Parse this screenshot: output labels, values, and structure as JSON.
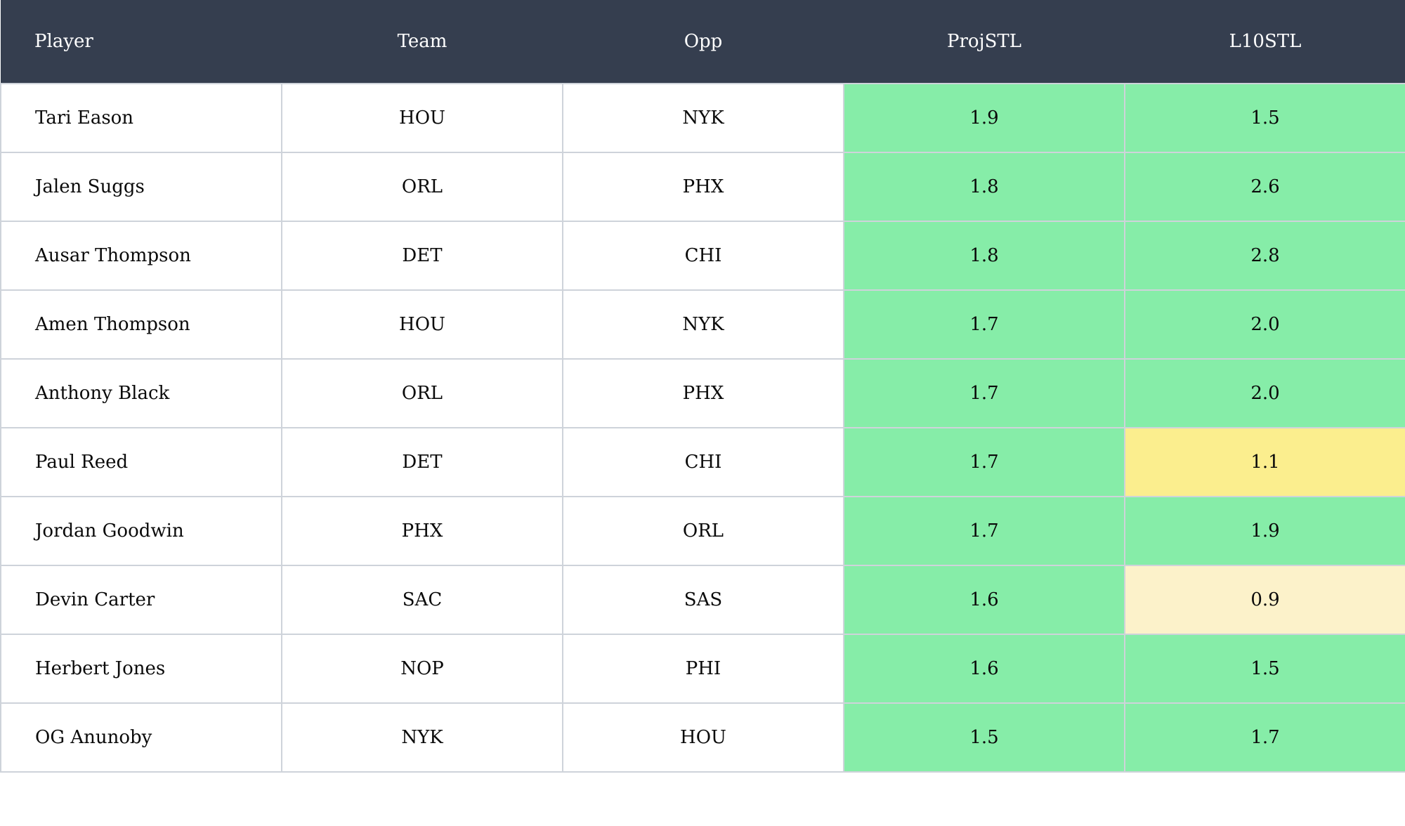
{
  "table": {
    "columns": [
      {
        "key": "player",
        "label": "Player",
        "align": "left"
      },
      {
        "key": "team",
        "label": "Team",
        "align": "center"
      },
      {
        "key": "opp",
        "label": "Opp",
        "align": "center"
      },
      {
        "key": "projstl",
        "label": "ProjSTL",
        "align": "center"
      },
      {
        "key": "l10stl",
        "label": "L10STL",
        "align": "center"
      }
    ],
    "rows": [
      {
        "player": "Tari Eason",
        "team": "HOU",
        "opp": "NYK",
        "projstl": {
          "value": "1.9",
          "tone": "green"
        },
        "l10stl": {
          "value": "1.5",
          "tone": "green"
        }
      },
      {
        "player": "Jalen Suggs",
        "team": "ORL",
        "opp": "PHX",
        "projstl": {
          "value": "1.8",
          "tone": "green"
        },
        "l10stl": {
          "value": "2.6",
          "tone": "green"
        }
      },
      {
        "player": "Ausar Thompson",
        "team": "DET",
        "opp": "CHI",
        "projstl": {
          "value": "1.8",
          "tone": "green"
        },
        "l10stl": {
          "value": "2.8",
          "tone": "green"
        }
      },
      {
        "player": "Amen Thompson",
        "team": "HOU",
        "opp": "NYK",
        "projstl": {
          "value": "1.7",
          "tone": "green"
        },
        "l10stl": {
          "value": "2.0",
          "tone": "green"
        }
      },
      {
        "player": "Anthony Black",
        "team": "ORL",
        "opp": "PHX",
        "projstl": {
          "value": "1.7",
          "tone": "green"
        },
        "l10stl": {
          "value": "2.0",
          "tone": "green"
        }
      },
      {
        "player": "Paul Reed",
        "team": "DET",
        "opp": "CHI",
        "projstl": {
          "value": "1.7",
          "tone": "green"
        },
        "l10stl": {
          "value": "1.1",
          "tone": "yellow"
        }
      },
      {
        "player": "Jordan Goodwin",
        "team": "PHX",
        "opp": "ORL",
        "projstl": {
          "value": "1.7",
          "tone": "green"
        },
        "l10stl": {
          "value": "1.9",
          "tone": "green"
        }
      },
      {
        "player": "Devin Carter",
        "team": "SAC",
        "opp": "SAS",
        "projstl": {
          "value": "1.6",
          "tone": "green"
        },
        "l10stl": {
          "value": "0.9",
          "tone": "cream"
        }
      },
      {
        "player": "Herbert Jones",
        "team": "NOP",
        "opp": "PHI",
        "projstl": {
          "value": "1.6",
          "tone": "green"
        },
        "l10stl": {
          "value": "1.5",
          "tone": "green"
        }
      },
      {
        "player": "OG Anunoby",
        "team": "NYK",
        "opp": "HOU",
        "projstl": {
          "value": "1.5",
          "tone": "green"
        },
        "l10stl": {
          "value": "1.7",
          "tone": "green"
        }
      }
    ]
  },
  "colors": {
    "header_bg": "#353e4f",
    "header_text": "#ffffff",
    "border": "#ced3da",
    "row_bg": "#ffffff",
    "cell_text": "#0a0a0a",
    "green": "#86eda8",
    "yellow": "#fbee8e",
    "cream": "#fcf2ca"
  }
}
